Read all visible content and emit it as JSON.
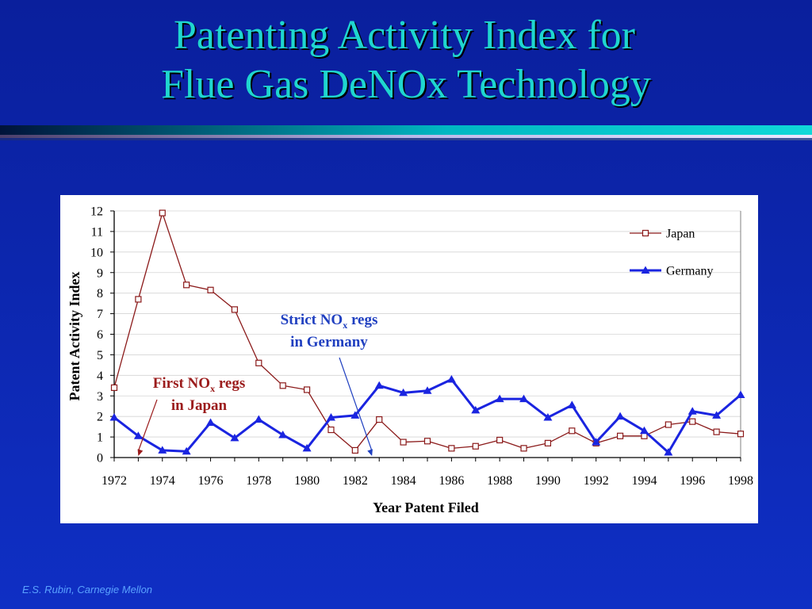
{
  "slide": {
    "title_line1": "Patenting Activity Index for",
    "title_line2": "Flue Gas DeNOx Technology",
    "footer": "E.S. Rubin, Carnegie Mellon"
  },
  "colors": {
    "japan": "#8b1a1a",
    "germany": "#1a24e0",
    "annotation_japan": "#9b1c1c",
    "annotation_germany": "#1f3fc0"
  },
  "chart_data": {
    "type": "line",
    "title": "",
    "xlabel": "Year Patent Filed",
    "ylabel": "Patent Activity Index",
    "xlim": [
      1972,
      1998
    ],
    "ylim": [
      0,
      12
    ],
    "x_ticks": [
      1972,
      1974,
      1976,
      1978,
      1980,
      1982,
      1984,
      1986,
      1988,
      1990,
      1992,
      1994,
      1996,
      1998
    ],
    "y_ticks": [
      0,
      1,
      2,
      3,
      4,
      5,
      6,
      7,
      8,
      9,
      10,
      11,
      12
    ],
    "grid": "horizontal",
    "legend_position": "top-right",
    "x": [
      1972,
      1973,
      1974,
      1975,
      1976,
      1977,
      1978,
      1979,
      1980,
      1981,
      1982,
      1983,
      1984,
      1985,
      1986,
      1987,
      1988,
      1989,
      1990,
      1991,
      1992,
      1993,
      1994,
      1995,
      1996,
      1997,
      1998
    ],
    "series": [
      {
        "name": "Japan",
        "marker": "open-square",
        "values": [
          3.4,
          7.7,
          11.9,
          8.4,
          8.15,
          7.2,
          4.6,
          3.5,
          3.3,
          1.35,
          0.35,
          1.85,
          0.75,
          0.8,
          0.45,
          0.55,
          0.85,
          0.45,
          0.7,
          1.3,
          0.7,
          1.05,
          1.05,
          1.6,
          1.75,
          1.25,
          1.15
        ]
      },
      {
        "name": "Germany",
        "marker": "filled-triangle",
        "values": [
          1.95,
          1.05,
          0.35,
          0.3,
          1.7,
          0.95,
          1.85,
          1.1,
          0.45,
          1.95,
          2.05,
          3.5,
          3.15,
          3.25,
          3.8,
          2.3,
          2.85,
          2.85,
          1.95,
          2.55,
          0.75,
          2.0,
          1.3,
          0.25,
          2.25,
          2.05,
          3.05
        ]
      }
    ],
    "annotations": [
      {
        "line1_main": "First NO",
        "sub": "x",
        "line1_tail": " regs",
        "line2": "in Japan",
        "arrow_to_year": 1973
      },
      {
        "line1_main": "Strict NO",
        "sub": "x",
        "line1_tail": " regs",
        "line2": "in Germany",
        "arrow_to_year": 1982.7
      }
    ]
  }
}
